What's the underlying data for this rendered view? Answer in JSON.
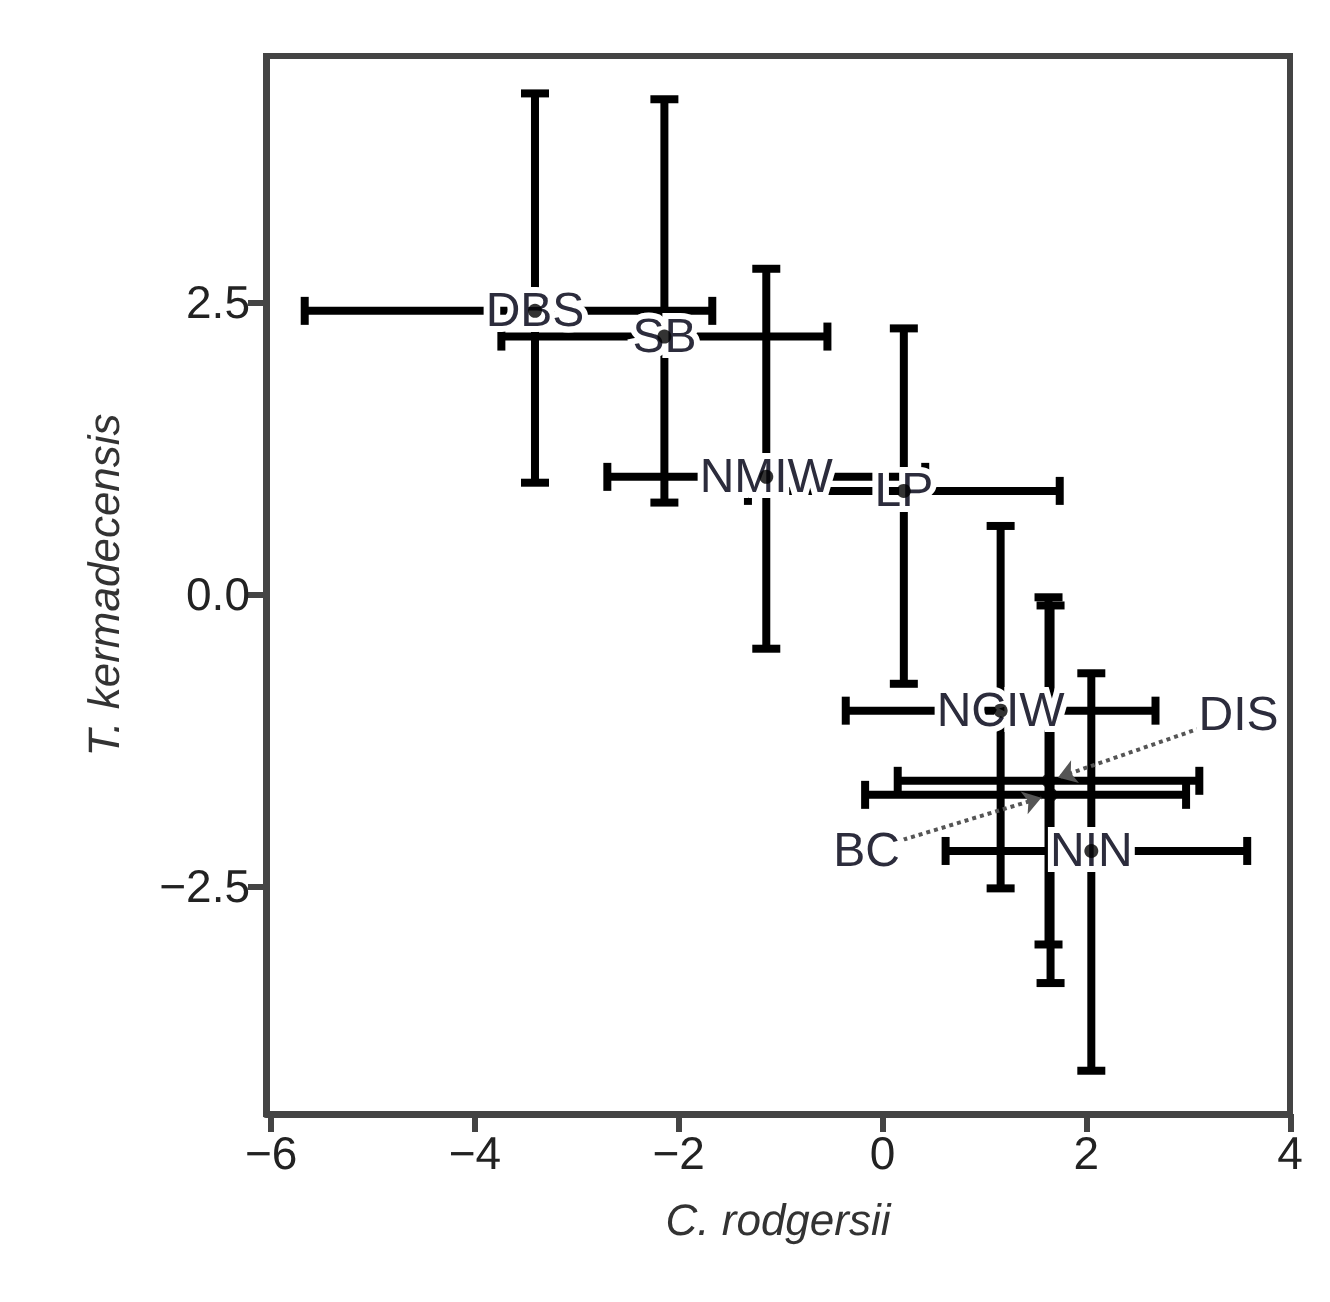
{
  "chart_data": {
    "type": "scatter",
    "xlabel": "C. rodgersii",
    "ylabel": "T. kermadecensis",
    "xlim": [
      -6.05,
      4
    ],
    "xticks": [
      {
        "value": -6,
        "label": "−6"
      },
      {
        "value": -4,
        "label": "−4"
      },
      {
        "value": -2,
        "label": "−2"
      },
      0,
      2,
      4
    ],
    "ylim": [
      -4.45,
      4.6
    ],
    "yticks": [
      {
        "value": -2.5,
        "label": "−2.5"
      },
      {
        "value": 0,
        "label": "0.0"
      },
      2.5
    ],
    "grid": false,
    "marker": "circle",
    "series": [
      {
        "color": "#000000",
        "x": [
          -3.41
        ],
        "values": [
          2.42
        ],
        "xerrors": [
          [
            -5.67,
            -1.67
          ]
        ],
        "errors": [
          [
            0.95,
            4.28
          ]
        ]
      },
      {
        "color": "#000000",
        "x": [
          -2.14
        ],
        "values": [
          2.2
        ],
        "xerrors": [
          [
            -3.74,
            -0.54
          ]
        ],
        "errors": [
          [
            0.78,
            4.23
          ]
        ]
      },
      {
        "color": "#000000",
        "x": [
          -1.14
        ],
        "values": [
          1.0
        ],
        "xerrors": [
          [
            -2.7,
            0.42
          ]
        ],
        "errors": [
          [
            -0.47,
            2.78
          ]
        ]
      },
      {
        "color": "#000000",
        "x": [
          0.21
        ],
        "values": [
          0.88
        ],
        "xerrors": [
          [
            -1.32,
            1.74
          ]
        ],
        "errors": [
          [
            -0.77,
            2.27
          ]
        ]
      },
      {
        "color": "#000000",
        "x": [
          1.16
        ],
        "values": [
          -1.0
        ],
        "xerrors": [
          [
            -0.36,
            2.68
          ]
        ],
        "errors": [
          [
            -2.52,
            0.58
          ]
        ]
      },
      {
        "color": "#000000",
        "x": [
          1.63
        ],
        "values": [
          -1.6
        ],
        "xerrors": [
          [
            0.15,
            3.11
          ]
        ],
        "errors": [
          [
            -3.0,
            -0.03
          ]
        ]
      },
      {
        "color": "#000000",
        "x": [
          1.65
        ],
        "values": [
          -1.72
        ],
        "xerrors": [
          [
            -0.17,
            2.98
          ]
        ],
        "errors": [
          [
            -3.33,
            -0.1
          ]
        ]
      },
      {
        "color": "#000000",
        "x": [
          2.05
        ],
        "values": [
          -2.2
        ],
        "xerrors": [
          [
            0.62,
            3.58
          ]
        ],
        "errors": [
          [
            -4.08,
            -0.68
          ]
        ]
      }
    ],
    "annotations": [
      {
        "text": "DBS",
        "x": -3.41,
        "y": 2.42
      },
      {
        "text": "SB",
        "x": -2.14,
        "y": 2.2
      },
      {
        "text": "NMIW",
        "x": -1.14,
        "y": 1.0
      },
      {
        "text": "LP",
        "x": 0.21,
        "y": 0.88
      },
      {
        "text": "NCIW",
        "x": 1.16,
        "y": -1.0
      },
      {
        "text": "NIN",
        "x": 2.05,
        "y": -2.2
      },
      {
        "text": "DIS",
        "x": 1.63,
        "y": -1.6
      },
      {
        "text": "BC",
        "x": 1.65,
        "y": -1.72
      }
    ]
  }
}
